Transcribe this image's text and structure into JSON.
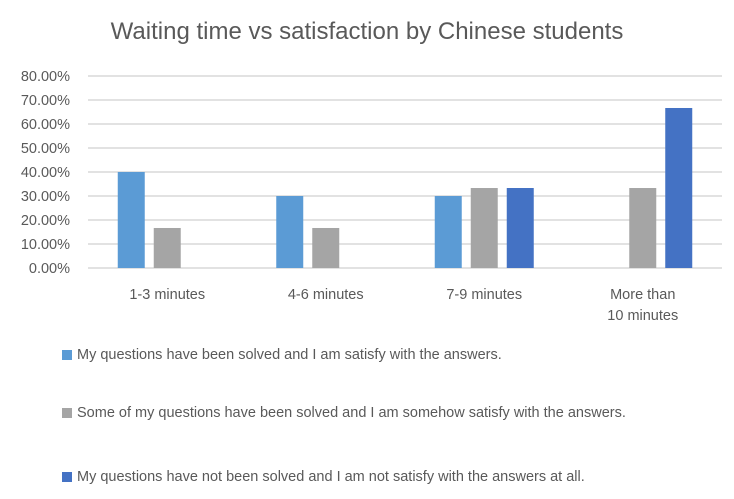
{
  "chart_data": {
    "type": "bar",
    "title": "Waiting time vs satisfaction by Chinese students",
    "xlabel": "",
    "ylabel": "",
    "ylim": [
      0,
      0.8
    ],
    "yticks": [
      "0.00%",
      "10.00%",
      "20.00%",
      "30.00%",
      "40.00%",
      "50.00%",
      "60.00%",
      "70.00%",
      "80.00%"
    ],
    "grid": true,
    "legend_position": "bottom",
    "categories": [
      "1-3 minutes",
      "4-6 minutes",
      "7-9 minutes",
      "More than 10 minutes"
    ],
    "series": [
      {
        "name": "My questions have been solved and I am satisfy with the answers.",
        "color": "#5B9BD5",
        "values": [
          0.4,
          0.3,
          0.3,
          0
        ]
      },
      {
        "name": "Some of my questions have been solved and I am somehow satisfy with the answers.",
        "color": "#A5A5A5",
        "values": [
          0.1667,
          0.1667,
          0.3333,
          0.3333
        ]
      },
      {
        "name": "My questions have not been solved and I am not satisfy with the answers at all.",
        "color": "#4472C4",
        "values": [
          0,
          0,
          0.3333,
          0.6667
        ]
      }
    ]
  }
}
